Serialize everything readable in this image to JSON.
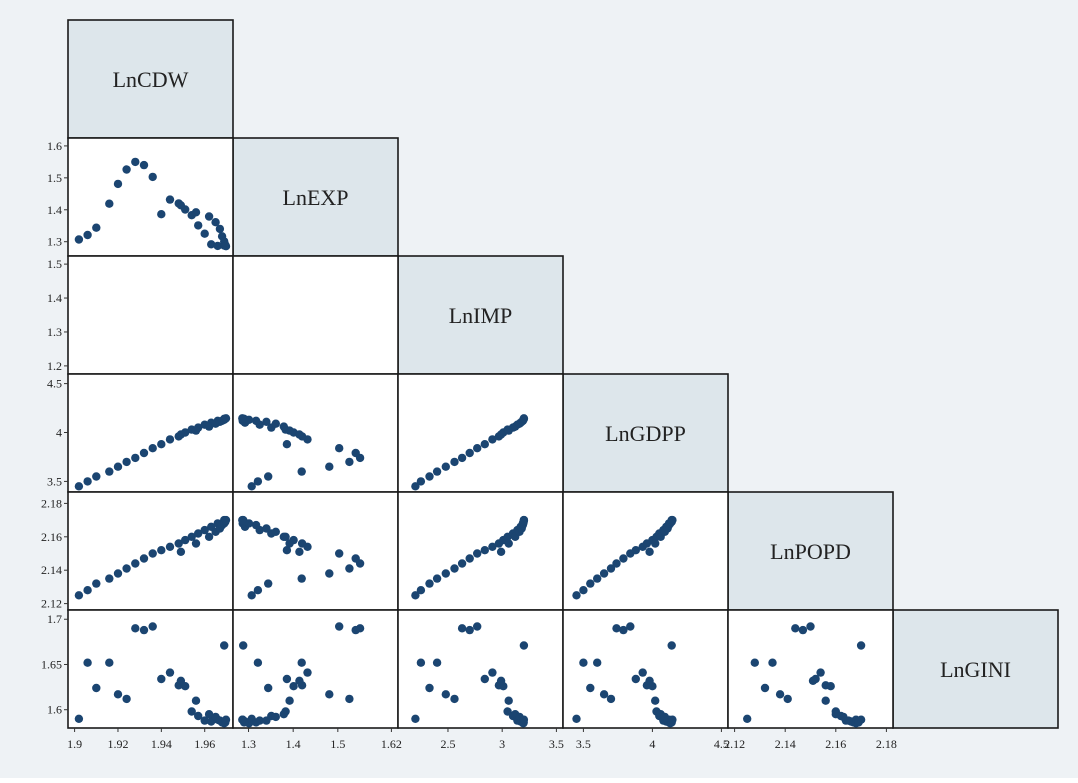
{
  "chart_data": {
    "type": "scatter",
    "variables": [
      "LnCDW",
      "LnEXP",
      "LnIMP",
      "LnGDPP",
      "LnPOPD",
      "LnGINI"
    ],
    "colors": {
      "marker": "#1b4571",
      "diag_fill": "#dde6eb",
      "background": "#eef2f5"
    },
    "axes": {
      "LnCDW": {
        "range": [
          1.9,
          1.97
        ],
        "ticks": [
          "1.9",
          "1.92",
          "1.94",
          "1.96"
        ]
      },
      "LnEXP": {
        "range": [
          1.28,
          1.62
        ],
        "ticks": [
          "1.3",
          "1.4",
          "1.5",
          "1.62"
        ],
        "yrange": [
          1.27,
          1.61
        ],
        "yticks": [
          "1.3",
          "1.4",
          "1.5",
          "1.6"
        ]
      },
      "LnIMP": {
        "range": [
          2.1,
          3.5
        ],
        "ticks": [
          "2.5",
          "3",
          "3.5"
        ],
        "yrange": [
          1.19,
          1.51
        ],
        "yticks": [
          "1.2",
          "1.3",
          "1.4",
          "1.5"
        ]
      },
      "LnGDPP": {
        "range": [
          3.4,
          4.5
        ],
        "ticks": [
          "3.5",
          "4",
          "4.5"
        ],
        "yrange": [
          3.44,
          4.55
        ],
        "yticks": [
          "3.5",
          "4",
          "4.5"
        ]
      },
      "LnPOPD": {
        "range": [
          2.12,
          2.18
        ],
        "ticks": [
          "2.12",
          "2.14",
          "2.16",
          "2.18"
        ],
        "yrange": [
          2.119,
          2.184
        ],
        "yticks": [
          "2.12",
          "2.14",
          "2.16",
          "2.18"
        ]
      },
      "LnGINI": {
        "yrange": [
          1.585,
          1.705
        ],
        "yticks": [
          "1.6",
          "1.65",
          "1.7"
        ]
      }
    },
    "observations": {
      "LnCDW": [
        1.902,
        1.906,
        1.91,
        1.916,
        1.92,
        1.924,
        1.928,
        1.932,
        1.936,
        1.94,
        1.944,
        1.948,
        1.951,
        1.954,
        1.957,
        1.96,
        1.963,
        1.966,
        1.969,
        1.949,
        1.956,
        1.962,
        1.965,
        1.967,
        1.968,
        1.969,
        1.9695,
        1.9698
      ],
      "LnEXP": [
        1.307,
        1.321,
        1.344,
        1.419,
        1.481,
        1.526,
        1.55,
        1.54,
        1.503,
        1.386,
        1.432,
        1.42,
        1.401,
        1.383,
        1.351,
        1.325,
        1.292,
        1.287,
        1.288,
        1.414,
        1.392,
        1.379,
        1.361,
        1.34,
        1.317,
        1.301,
        1.29,
        1.286
      ],
      "LnIMP": [
        2.2,
        2.25,
        2.33,
        2.4,
        2.48,
        2.56,
        2.63,
        2.7,
        2.77,
        2.84,
        2.91,
        2.97,
        3.01,
        3.05,
        3.1,
        3.14,
        3.17,
        3.19,
        3.2,
        2.99,
        3.06,
        3.12,
        3.16,
        3.18,
        3.19,
        3.195,
        3.198,
        3.2
      ],
      "LnGDPP": [
        3.45,
        3.5,
        3.55,
        3.6,
        3.65,
        3.7,
        3.74,
        3.79,
        3.84,
        3.88,
        3.93,
        3.96,
        4.0,
        4.03,
        4.05,
        4.08,
        4.1,
        4.12,
        4.14,
        3.98,
        4.02,
        4.06,
        4.09,
        4.11,
        4.12,
        4.13,
        4.14,
        4.145
      ],
      "LnPOPD": [
        2.125,
        2.128,
        2.132,
        2.135,
        2.138,
        2.141,
        2.144,
        2.147,
        2.15,
        2.152,
        2.154,
        2.156,
        2.158,
        2.16,
        2.162,
        2.164,
        2.166,
        2.168,
        2.17,
        2.151,
        2.156,
        2.16,
        2.163,
        2.165,
        2.167,
        2.168,
        2.169,
        2.17
      ],
      "LnGINI": [
        1.59,
        1.652,
        1.624,
        1.652,
        1.617,
        1.612,
        1.69,
        1.688,
        1.692,
        1.634,
        1.641,
        1.627,
        1.626,
        1.598,
        1.593,
        1.588,
        1.587,
        1.589,
        1.671,
        1.632,
        1.61,
        1.595,
        1.592,
        1.588,
        1.586,
        1.585,
        1.586,
        1.589
      ]
    }
  }
}
